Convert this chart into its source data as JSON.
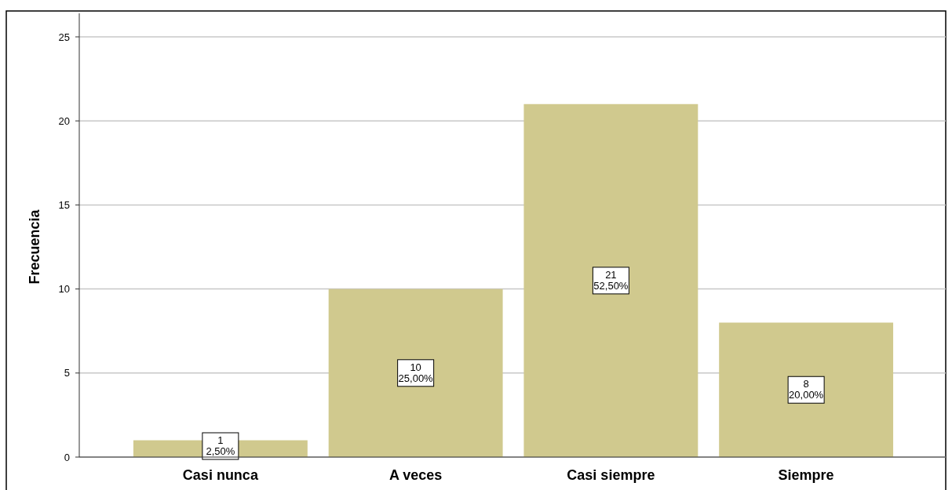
{
  "chart_data": {
    "type": "bar",
    "ylabel": "Frecuencia",
    "categories": [
      "Casi nunca",
      "A veces",
      "Casi siempre",
      "Siempre"
    ],
    "values": [
      1,
      10,
      21,
      8
    ],
    "value_labels": [
      "1\n2,50%",
      "10\n25,00%",
      "21\n52,50%",
      "8\n20,00%"
    ],
    "color": "#d0c98e",
    "ylim": [
      0,
      25
    ],
    "yticks": [
      0,
      5,
      10,
      15,
      20,
      25
    ],
    "grid": "y"
  }
}
